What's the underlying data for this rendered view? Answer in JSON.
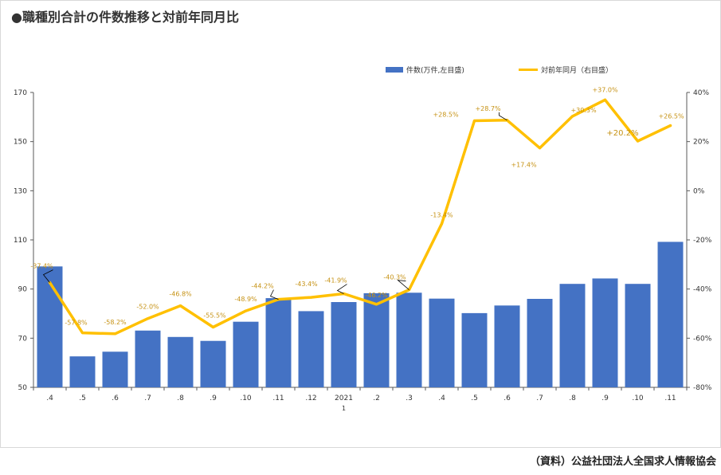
{
  "title": "●職種別合計の件数推移と対前年同月比",
  "source": "（資料）公益社団法人全国求人情報協会",
  "legend": {
    "bar_label": "件数(万件,左目盛)",
    "line_label": "対前年同月（右目盛）"
  },
  "colors": {
    "bar": "#4472C4",
    "line": "#FFC000",
    "label": "#C69214",
    "axis_text": "#333333",
    "grid": "#E6E6E6",
    "border": "#D9D9D9"
  },
  "chart_data": {
    "type": "bar+line",
    "categories": [
      ".4",
      ".5",
      ".6",
      ".7",
      ".8",
      ".9",
      ".10",
      ".11",
      ".12",
      "2021",
      ".2",
      ".3",
      ".4",
      ".5",
      ".6",
      ".7",
      ".8",
      ".9",
      ".10",
      ".11"
    ],
    "category_sublabels": [
      "",
      "",
      "",
      "",
      "",
      "",
      "",
      "",
      "",
      "1",
      "",
      "",
      "",
      "",
      "",
      "",
      "",
      "",
      "",
      ""
    ],
    "series": [
      {
        "name": "件数(万件,左目盛)",
        "type": "bar",
        "axis": "left",
        "values": [
          99.2,
          62.6,
          64.5,
          73.1,
          70.5,
          68.9,
          76.7,
          86.3,
          81.0,
          84.7,
          88.3,
          88.5,
          86.1,
          80.2,
          83.3,
          86.0,
          92.1,
          94.3,
          92.1,
          109.2
        ]
      },
      {
        "name": "対前年同月（右目盛）",
        "type": "line",
        "axis": "right",
        "values": [
          -37.4,
          -57.8,
          -58.2,
          -52.0,
          -46.8,
          -55.5,
          -48.9,
          -44.2,
          -43.4,
          -41.9,
          -46.2,
          -40.3,
          -13.4,
          28.5,
          28.7,
          17.4,
          30.3,
          37.0,
          20.2,
          26.5
        ],
        "labels": [
          "-37.4%",
          "-57.8%",
          "-58.2%",
          "-52.0%",
          "-46.8%",
          "-55.5%",
          "-48.9%",
          "-44.2%",
          "-43.4%",
          "-41.9%",
          "-46.2%",
          "-40.3%",
          "-13.4%",
          "+28.5%",
          "+28.7%",
          "+17.4%",
          "+30.3%",
          "+37.0%",
          "+20.2%",
          "+26.5%"
        ]
      }
    ],
    "y_left": {
      "min": 50,
      "max": 170,
      "ticks": [
        50,
        70,
        90,
        110,
        130,
        150,
        170
      ],
      "tick_labels": [
        "50",
        "70",
        "90",
        "110",
        "130",
        "150",
        "170"
      ]
    },
    "y_right": {
      "min": -80,
      "max": 40,
      "ticks": [
        -80,
        -60,
        -40,
        -20,
        0,
        20,
        40
      ],
      "tick_labels": [
        "-80%",
        "-60%",
        "-40%",
        "-20%",
        "0%",
        "20%",
        "40%"
      ]
    },
    "grid": false,
    "legend_position": "top-right"
  }
}
